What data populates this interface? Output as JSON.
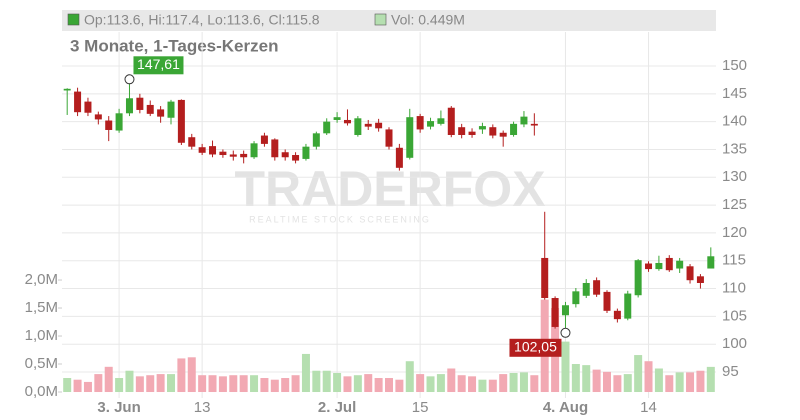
{
  "chart_data": {
    "type": "candlestick",
    "subtitle": "3 Monate, 1-Tages-Kerzen",
    "legend": {
      "ohlc": "Op:113.6, Hi:117.4, Lo:113.6, Cl:115.8",
      "volume": "Vol: 0.449M"
    },
    "watermark": {
      "brand": "TRADERFOX",
      "tagline": "REALTIME STOCK SCREENING"
    },
    "categories": [
      null,
      null,
      null,
      null,
      null,
      "3. Jun",
      null,
      null,
      null,
      null,
      null,
      null,
      null,
      "13",
      null,
      null,
      null,
      null,
      null,
      null,
      null,
      null,
      null,
      null,
      null,
      null,
      "2. Jul",
      null,
      null,
      null,
      null,
      null,
      null,
      null,
      "15",
      null,
      null,
      null,
      null,
      null,
      null,
      null,
      null,
      null,
      null,
      null,
      null,
      null,
      "4. Aug",
      null,
      null,
      null,
      null,
      null,
      null,
      null,
      "14",
      null,
      null,
      null,
      null,
      null,
      null
    ],
    "open": [
      145.6,
      145.4,
      143.6,
      141.3,
      140.2,
      138.4,
      141.5,
      144.3,
      143,
      142.2,
      140.7,
      143.9,
      137.2,
      135.4,
      135.6,
      134.6,
      134.1,
      134.2,
      133.6,
      137.5,
      136.8,
      134.5,
      134,
      133.3,
      135.5,
      137.9,
      140.3,
      140.3,
      137.6,
      139.6,
      139.8,
      138.6,
      135.3,
      133.5,
      141,
      139.1,
      139.6,
      142.5,
      139,
      138.2,
      138.6,
      139,
      138,
      137.6,
      139.5,
      139.6,
      115.5,
      108.3,
      105.2,
      107.2,
      108.7,
      111.5,
      109.4,
      106,
      104.6,
      108.8,
      114.5,
      113.5,
      115.5,
      113.6,
      114,
      112.2,
      113.6
    ],
    "high": [
      146,
      146.1,
      144.3,
      141.8,
      141,
      142.3,
      147.61,
      145,
      143.8,
      142.8,
      143.9,
      144,
      137.8,
      136,
      136.6,
      135,
      134.8,
      134.8,
      136.5,
      138,
      137,
      135,
      134.5,
      136,
      138.2,
      140.6,
      141.7,
      142.2,
      141,
      140.3,
      140.5,
      139,
      136,
      142.3,
      141.4,
      140.7,
      142,
      142.8,
      139.6,
      138.8,
      139.8,
      139.5,
      138.4,
      140,
      141.9,
      141.5,
      123.8,
      108.6,
      107.6,
      110.1,
      111.7,
      112,
      109.7,
      106.4,
      109.6,
      115.3,
      114.9,
      115.9,
      116,
      115.5,
      114.4,
      112.6,
      117.4
    ],
    "low": [
      141.2,
      141,
      141,
      139.5,
      136.5,
      138,
      141,
      141.5,
      141,
      139.8,
      139.5,
      135.8,
      135,
      134,
      133.6,
      133.5,
      133,
      132.5,
      133.3,
      135.5,
      133,
      133,
      132.5,
      133,
      135,
      137.6,
      139.8,
      139.3,
      137.3,
      138.5,
      138.2,
      135,
      131.2,
      133.2,
      138,
      138.6,
      139.3,
      137.2,
      137,
      137.1,
      137.8,
      137,
      135.5,
      137.3,
      139,
      137.5,
      108,
      102.8,
      102.05,
      106.6,
      108.3,
      108.5,
      105.6,
      103.9,
      104.3,
      108.4,
      113,
      113.2,
      113,
      112.8,
      110.9,
      110,
      113.6
    ],
    "close": [
      145.9,
      141.7,
      141.6,
      140.4,
      138.5,
      141.5,
      144.2,
      142.1,
      141.4,
      140.9,
      143.6,
      136.2,
      135.5,
      134.4,
      134.1,
      134,
      133.7,
      133.6,
      136.1,
      136,
      133.6,
      133.6,
      133,
      135.5,
      137.9,
      140,
      140.8,
      139.7,
      140.6,
      139.1,
      138.8,
      135.5,
      131.7,
      140.8,
      138.6,
      140.1,
      140.6,
      137.6,
      137.6,
      137.6,
      139.2,
      137.5,
      137.3,
      139.6,
      140.9,
      139.3,
      108.3,
      103.1,
      107,
      109.5,
      111,
      108.9,
      106,
      104.5,
      109.1,
      115.1,
      113.5,
      114.6,
      113.3,
      115,
      111.5,
      111,
      115.8
    ],
    "volume": [
      0.25,
      0.22,
      0.18,
      0.32,
      0.45,
      0.25,
      0.38,
      0.28,
      0.3,
      0.32,
      0.32,
      0.6,
      0.62,
      0.3,
      0.3,
      0.28,
      0.3,
      0.3,
      0.3,
      0.25,
      0.22,
      0.25,
      0.3,
      0.68,
      0.38,
      0.38,
      0.34,
      0.28,
      0.3,
      0.32,
      0.25,
      0.25,
      0.22,
      0.55,
      0.32,
      0.28,
      0.32,
      0.42,
      0.3,
      0.28,
      0.22,
      0.22,
      0.32,
      0.34,
      0.35,
      0.3,
      1.65,
      1.5,
      0.9,
      0.5,
      0.48,
      0.4,
      0.36,
      0.3,
      0.32,
      0.66,
      0.55,
      0.42,
      0.3,
      0.35,
      0.35,
      0.38,
      0.449
    ],
    "up_color": "#3aa635",
    "down_color": "#b41e1e",
    "volume_up_color": "#b5dfb0",
    "volume_down_color": "#f2a9b3",
    "ylim": [
      90.33,
      156.11
    ],
    "yticks": [
      95,
      100,
      105,
      110,
      115,
      120,
      125,
      130,
      135,
      140,
      145,
      150
    ],
    "y2lim": [
      -0.107,
      6.43
    ],
    "y2ticks": [
      {
        "value": 0,
        "label": "0,0M"
      },
      {
        "value": 0.5,
        "label": "0,5M"
      },
      {
        "value": 1,
        "label": "1,0M"
      },
      {
        "value": 1.5,
        "label": "1,5M"
      },
      {
        "value": 2,
        "label": "2,0M"
      }
    ],
    "grid": true,
    "annotations": {
      "max": {
        "value": 147.61,
        "label": "147,61"
      },
      "min": {
        "value": 102.05,
        "label": "102,05"
      }
    }
  }
}
